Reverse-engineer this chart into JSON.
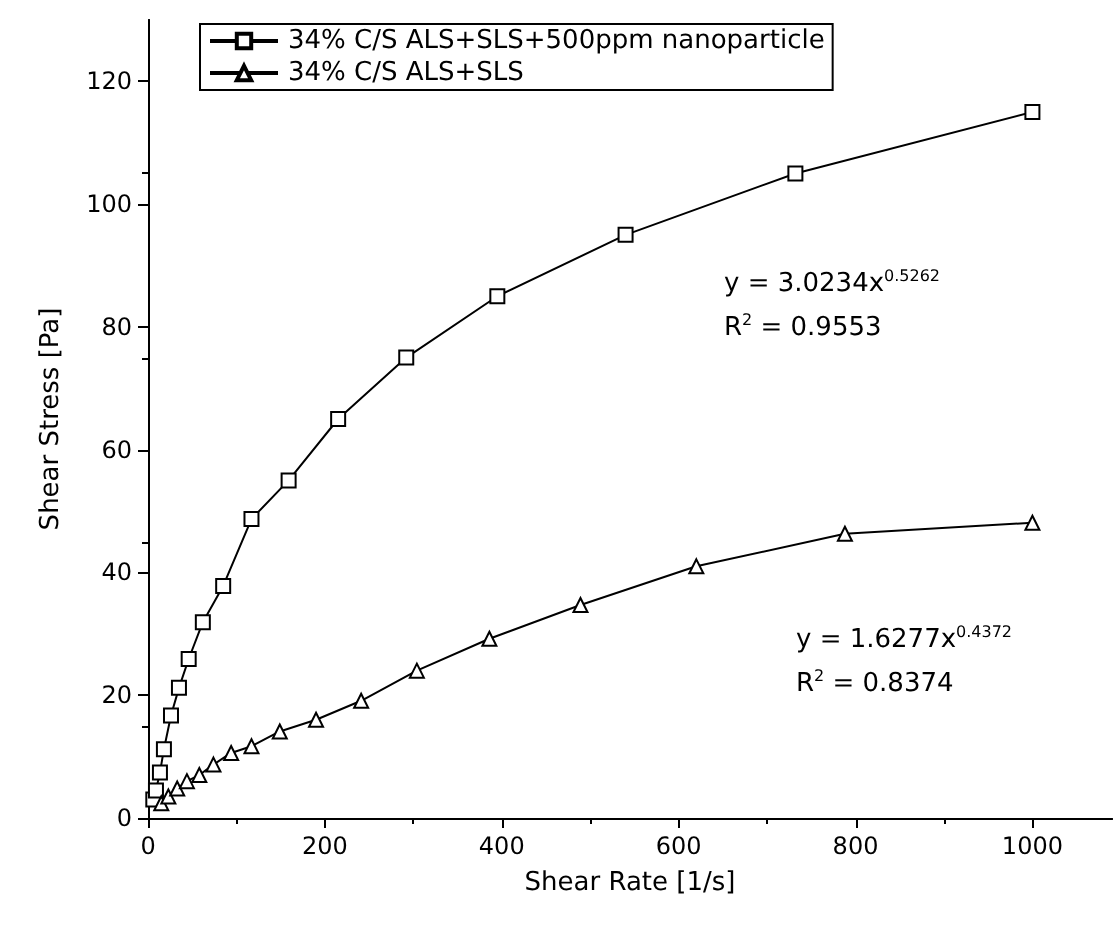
{
  "chart_data": {
    "type": "line",
    "xlabel": "Shear Rate [1/s]",
    "ylabel": "Shear Stress [Pa]",
    "xlim": [
      0,
      1090
    ],
    "xticks": [
      0,
      200,
      400,
      600,
      800,
      1000
    ],
    "ylim": [
      0,
      130
    ],
    "yticks": [
      0,
      20,
      40,
      60,
      80,
      100,
      120
    ],
    "grid": false,
    "legend": "top left",
    "line_style": "solid",
    "series": [
      {
        "name": "34% C/S ALS+SLS+500ppm nanoparticle",
        "color": "#000000",
        "marker": "square",
        "x": [
          6,
          9,
          13.5,
          18,
          26,
          35,
          46,
          62,
          85,
          117,
          159,
          215,
          292,
          395,
          540,
          732,
          1000
        ],
        "values": [
          3,
          4.5,
          7.4,
          11.2,
          16.7,
          21.2,
          25.9,
          31.9,
          37.8,
          48.7,
          55,
          65,
          75,
          85,
          95,
          105,
          115
        ]
      },
      {
        "name": "34% C/S ALS+SLS",
        "color": "#000000",
        "marker": "triangle",
        "x": [
          15,
          23,
          33,
          44,
          58,
          74,
          94,
          117,
          149,
          190,
          241,
          304,
          386,
          489,
          620,
          788,
          1000
        ],
        "values": [
          2.4,
          3.5,
          4.8,
          6,
          7,
          8.7,
          10.6,
          11.7,
          14.1,
          16,
          19.1,
          24,
          29.2,
          34.7,
          41,
          46.3,
          48.1
        ]
      }
    ],
    "annotations": [
      "y = 3.0234x$^{0.5262}$",
      "R$^{2}$ = 0.9553",
      "y = 1.6277x$^{0.4372}$",
      "R$^{2}$ = 0.8374"
    ]
  }
}
